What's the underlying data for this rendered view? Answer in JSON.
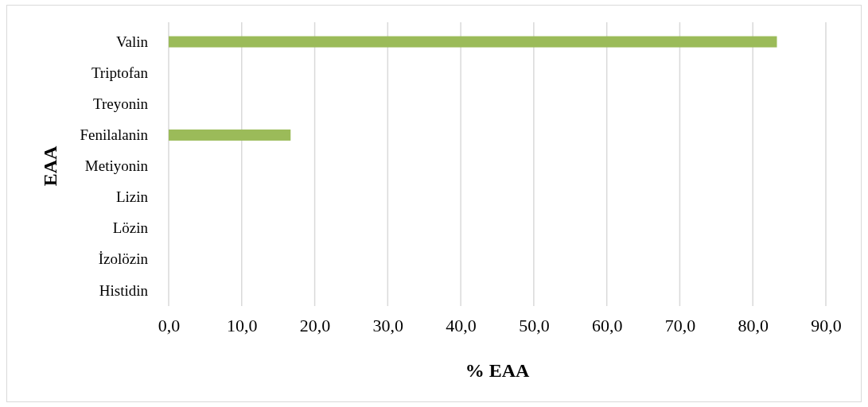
{
  "chart_data": {
    "type": "bar",
    "orientation": "horizontal",
    "xlabel": "% EAA",
    "ylabel": "EAA",
    "categories": [
      "Valin",
      "Triptofan",
      "Treyonin",
      "Fenilalanin",
      "Metiyonin",
      "Lizin",
      "Lözin",
      "İzolözin",
      "Histidin"
    ],
    "values": [
      83.3,
      0,
      0,
      16.7,
      0,
      0,
      0,
      0,
      0
    ],
    "color": "#9bbb59",
    "xlim": [
      0,
      90
    ],
    "xticks": [
      {
        "value": 0,
        "label": "0,0"
      },
      {
        "value": 10,
        "label": "10,0"
      },
      {
        "value": 20,
        "label": "20,0"
      },
      {
        "value": 30,
        "label": "30,0"
      },
      {
        "value": 40,
        "label": "40,0"
      },
      {
        "value": 50,
        "label": "50,0"
      },
      {
        "value": 60,
        "label": "60,0"
      },
      {
        "value": 70,
        "label": "70,0"
      },
      {
        "value": 80,
        "label": "80,0"
      },
      {
        "value": 90,
        "label": "90,0"
      }
    ],
    "grid": "x"
  }
}
